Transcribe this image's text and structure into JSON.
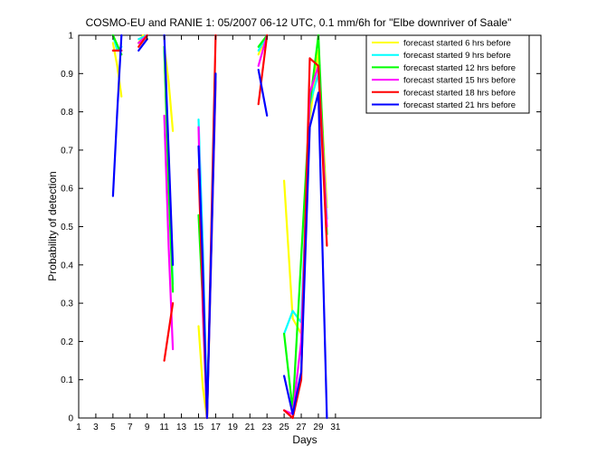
{
  "chart_data": {
    "type": "line",
    "title": "COSMO-EU and RANIE 1: 05/2007 06-12 UTC, 0.1 mm/6h for \"Elbe downriver of Saale\"",
    "xlabel": "Days",
    "ylabel": "Probability of detection",
    "xlim": [
      1,
      55
    ],
    "ylim": [
      0,
      1
    ],
    "xticks": [
      1,
      3,
      5,
      7,
      9,
      11,
      13,
      15,
      17,
      19,
      21,
      23,
      25,
      27,
      29,
      31
    ],
    "yticks": [
      0,
      0.1,
      0.2,
      0.3,
      0.4,
      0.5,
      0.6,
      0.7,
      0.8,
      0.9,
      1
    ],
    "ytick_labels": [
      "0",
      "0.1",
      "0.2",
      "0.3",
      "0.4",
      "0.5",
      "0.6",
      "0.7",
      "0.8",
      "0.9",
      "1"
    ],
    "grid": false,
    "legend_position": "top-right",
    "series": [
      {
        "name": "forecast started 6 hrs before",
        "color": "#ffff00",
        "segments": [
          [
            [
              5,
              0.98
            ],
            [
              5.5,
              0.92
            ],
            [
              6,
              0.84
            ]
          ],
          [
            [
              8,
              0.98
            ],
            [
              8.5,
              1.0
            ],
            [
              9,
              0.99
            ]
          ],
          [
            [
              11,
              0.97
            ],
            [
              11.5,
              0.88
            ],
            [
              12,
              0.75
            ]
          ],
          [
            [
              15,
              0.24
            ],
            [
              15.5,
              0.08
            ],
            [
              16,
              0.0
            ],
            [
              17,
              0.87
            ]
          ],
          [
            [
              22,
              0.95
            ],
            [
              23,
              1.0
            ]
          ],
          [
            [
              25,
              0.62
            ],
            [
              26,
              0.26
            ],
            [
              27,
              0.22
            ],
            [
              28,
              0.78
            ],
            [
              29,
              0.96
            ],
            [
              30,
              0.55
            ]
          ]
        ]
      },
      {
        "name": "forecast started 9 hrs before",
        "color": "#00ffff",
        "segments": [
          [
            [
              5,
              1.0
            ],
            [
              5.5,
              0.96
            ],
            [
              6,
              0.97
            ]
          ],
          [
            [
              8,
              0.99
            ],
            [
              9,
              1.0
            ]
          ],
          [
            [
              11,
              0.96
            ],
            [
              11.5,
              0.65
            ],
            [
              12,
              0.35
            ]
          ],
          [
            [
              15,
              0.78
            ],
            [
              15.5,
              0.45
            ],
            [
              16,
              0.02
            ],
            [
              17,
              0.88
            ]
          ],
          [
            [
              22,
              0.96
            ],
            [
              23,
              1.0
            ]
          ],
          [
            [
              25,
              0.22
            ],
            [
              26,
              0.28
            ],
            [
              27,
              0.25
            ],
            [
              28,
              0.82
            ],
            [
              29,
              0.9
            ],
            [
              30,
              0.52
            ]
          ]
        ]
      },
      {
        "name": "forecast started 12 hrs before",
        "color": "#00ff00",
        "segments": [
          [
            [
              5,
              1.0
            ],
            [
              6,
              0.95
            ]
          ],
          [
            [
              8,
              0.98
            ],
            [
              9,
              1.0
            ]
          ],
          [
            [
              11,
              0.97
            ],
            [
              11.5,
              0.6
            ],
            [
              12,
              0.33
            ]
          ],
          [
            [
              15,
              0.53
            ],
            [
              15.5,
              0.3
            ],
            [
              16,
              0.01
            ],
            [
              17,
              0.9
            ]
          ],
          [
            [
              22,
              0.97
            ],
            [
              23,
              1.0
            ]
          ],
          [
            [
              25,
              0.22
            ],
            [
              26,
              0.02
            ],
            [
              27,
              0.42
            ],
            [
              28,
              0.82
            ],
            [
              29,
              1.0
            ],
            [
              30,
              0.48
            ]
          ]
        ]
      },
      {
        "name": "forecast started 15 hrs before",
        "color": "#ff00ff",
        "segments": [
          [
            [
              5,
              0.96
            ],
            [
              6,
              0.96
            ]
          ],
          [
            [
              8,
              0.98
            ],
            [
              9,
              1.0
            ]
          ],
          [
            [
              11,
              0.79
            ],
            [
              11.5,
              0.45
            ],
            [
              12,
              0.18
            ]
          ],
          [
            [
              15,
              0.76
            ],
            [
              15.5,
              0.28
            ],
            [
              16,
              0.0
            ],
            [
              17,
              0.88
            ]
          ],
          [
            [
              22,
              0.92
            ],
            [
              23,
              1.0
            ]
          ],
          [
            [
              25,
              0.02
            ],
            [
              26,
              0.01
            ],
            [
              27,
              0.2
            ],
            [
              28,
              0.85
            ],
            [
              29,
              0.92
            ],
            [
              30,
              0.5
            ]
          ]
        ]
      },
      {
        "name": "forecast started 18 hrs before",
        "color": "#ff0000",
        "segments": [
          [
            [
              5,
              0.96
            ],
            [
              6,
              0.96
            ]
          ],
          [
            [
              8,
              0.97
            ],
            [
              9,
              1.0
            ]
          ],
          [
            [
              11,
              0.15
            ],
            [
              12,
              0.3
            ]
          ],
          [
            [
              15,
              0.65
            ],
            [
              15.5,
              0.32
            ],
            [
              16,
              0.0
            ],
            [
              17,
              1.0
            ]
          ],
          [
            [
              22,
              0.82
            ],
            [
              23,
              1.0
            ]
          ],
          [
            [
              25,
              0.02
            ],
            [
              26,
              0.0
            ],
            [
              27,
              0.1
            ],
            [
              28,
              0.94
            ],
            [
              29,
              0.92
            ],
            [
              30,
              0.45
            ]
          ]
        ]
      },
      {
        "name": "forecast started 21 hrs before",
        "color": "#0000ff",
        "segments": [
          [
            [
              5,
              0.58
            ],
            [
              5.5,
              0.8
            ],
            [
              6,
              1.0
            ]
          ],
          [
            [
              8,
              0.96
            ],
            [
              9,
              0.99
            ]
          ],
          [
            [
              11,
              1.0
            ],
            [
              11.5,
              0.7
            ],
            [
              12,
              0.4
            ]
          ],
          [
            [
              15,
              0.71
            ],
            [
              15.5,
              0.4
            ],
            [
              16,
              0.0
            ],
            [
              17,
              0.9
            ]
          ],
          [
            [
              22,
              0.91
            ],
            [
              23,
              0.79
            ]
          ],
          [
            [
              25,
              0.11
            ],
            [
              26,
              0.01
            ],
            [
              27,
              0.12
            ],
            [
              28,
              0.76
            ],
            [
              29,
              0.85
            ],
            [
              30,
              0.0
            ]
          ]
        ]
      }
    ]
  }
}
